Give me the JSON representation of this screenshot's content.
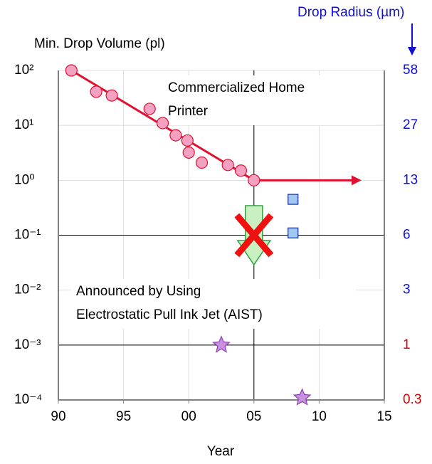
{
  "chart_data": {
    "type": "scatter",
    "ylabel": "Min. Drop Volume (pl)",
    "y2label": "Drop Radius (µm)",
    "xlabel": "Year",
    "xlim": [
      1990,
      2015
    ],
    "xticks": [
      {
        "value": 1990,
        "label": "90"
      },
      {
        "value": 1995,
        "label": "95"
      },
      {
        "value": 2000,
        "label": "00"
      },
      {
        "value": 2005,
        "label": "05"
      },
      {
        "value": 2010,
        "label": "10"
      },
      {
        "value": 2015,
        "label": "15"
      }
    ],
    "ylim": [
      0.0001,
      100
    ],
    "log_y": true,
    "yticks": [
      {
        "value": 100,
        "label": "10²"
      },
      {
        "value": 10,
        "label": "10¹"
      },
      {
        "value": 1,
        "label": "10⁰"
      },
      {
        "value": 0.1,
        "label": "10⁻¹"
      },
      {
        "value": 0.01,
        "label": "10⁻²"
      },
      {
        "value": 0.001,
        "label": "10⁻³"
      },
      {
        "value": 0.0001,
        "label": "10⁻⁴"
      }
    ],
    "y2ticks": [
      58,
      27,
      13,
      6,
      3,
      1,
      0.3
    ],
    "y2tick_colors": [
      "#1010d0",
      "#1010d0",
      "#1010d0",
      "#1010d0",
      "#1010d0",
      "#e00000",
      "#e00000"
    ],
    "grid": true,
    "series": [
      {
        "name": "Commercialized Home Printer",
        "marker": "circle",
        "color": "#f4a0c0",
        "line_color": "#e01030",
        "x": [
          1991,
          1992.9,
          1994.1,
          1997,
          1998,
          1999,
          1999.9,
          2000,
          2001,
          2003,
          2004,
          2005
        ],
        "values": [
          100,
          41,
          35,
          20,
          11,
          6.6,
          5.3,
          3.2,
          2.1,
          1.9,
          1.5,
          1
        ]
      },
      {
        "marker": "square",
        "color": "#a0c8f0",
        "x": [
          2008,
          2008
        ],
        "values": [
          0.45,
          0.11
        ]
      },
      {
        "marker": "star",
        "color": "#c890e0",
        "x": [
          2002.5,
          2008.7
        ],
        "values": [
          0.001,
          0.00011
        ]
      }
    ],
    "annotations": {
      "home": [
        "Commercialized Home",
        "Printer"
      ],
      "aist": [
        "Announced by Using",
        "Electrostatic Pull Ink Jet (AIST)"
      ]
    }
  }
}
